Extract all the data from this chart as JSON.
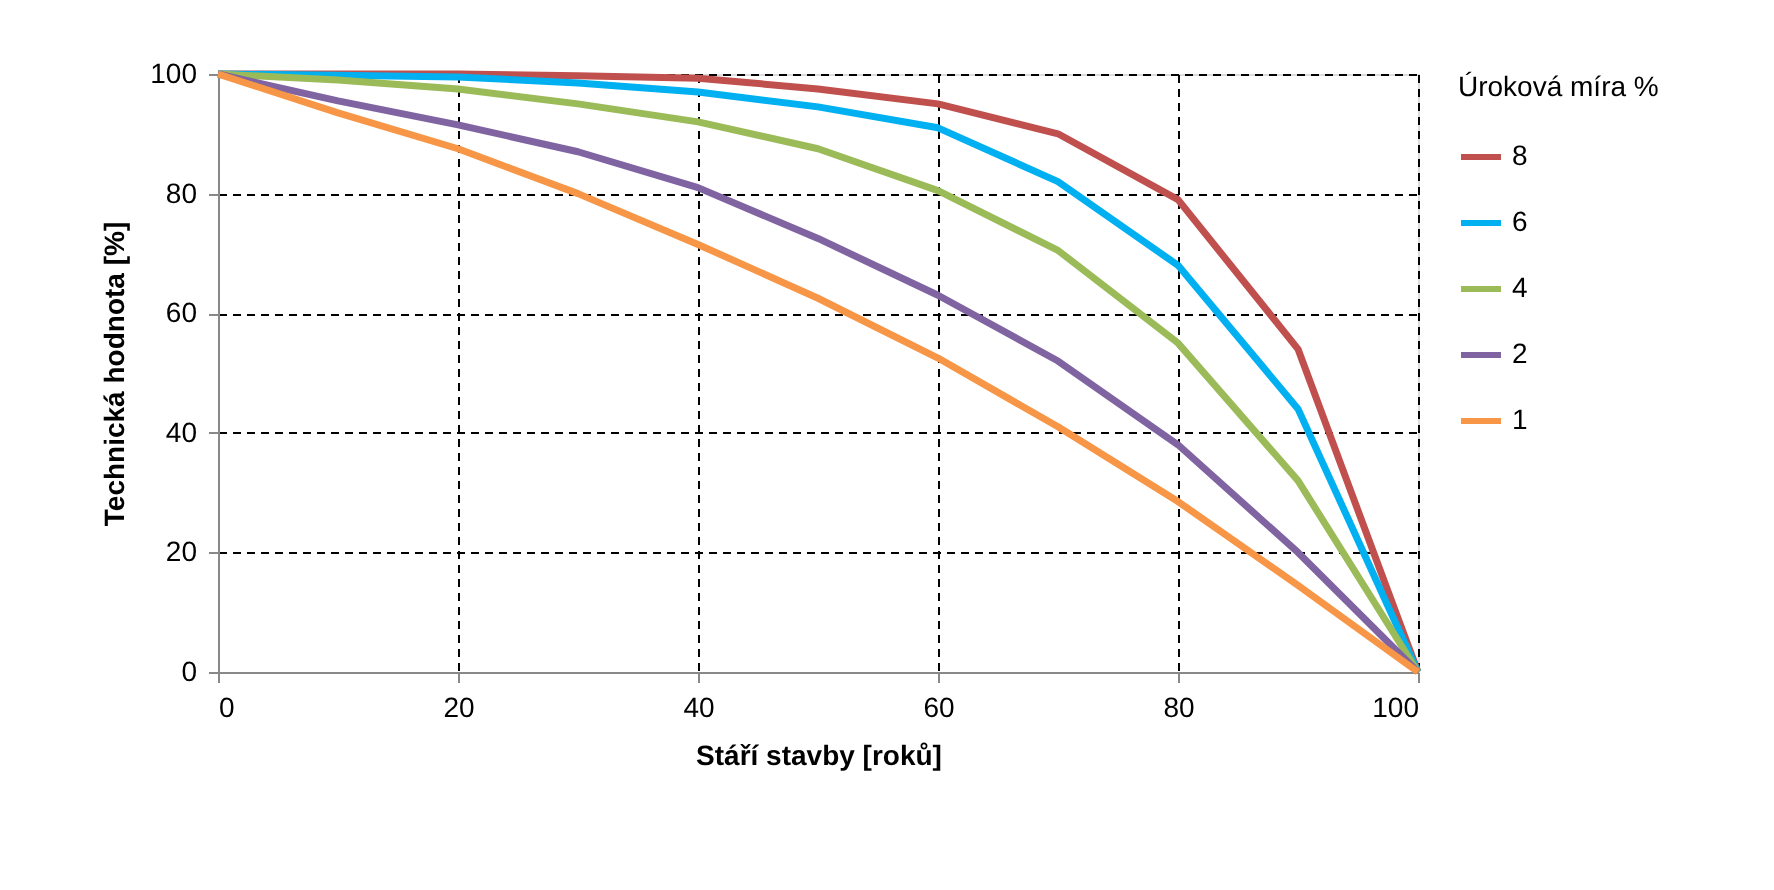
{
  "chart_data": {
    "type": "line",
    "xlabel": "Stáří stavby [roků]",
    "ylabel": "Technická hodnota [%]",
    "legend_title": "Úroková míra %",
    "x": [
      0,
      10,
      20,
      30,
      40,
      50,
      60,
      70,
      80,
      90,
      100
    ],
    "xlim": [
      0,
      100
    ],
    "xticks": [
      0,
      20,
      40,
      60,
      80,
      100
    ],
    "ylim": [
      0,
      100
    ],
    "yticks": [
      0,
      20,
      40,
      60,
      80,
      100
    ],
    "grid": true,
    "legend": "right",
    "marker": "none",
    "line_style": "solid",
    "series": [
      {
        "name": "8",
        "color": "#c0504d",
        "values": [
          100,
          100,
          100,
          99.7,
          99.3,
          97.5,
          95,
          90,
          79,
          54,
          0
        ]
      },
      {
        "name": "6",
        "color": "#00b0f0",
        "values": [
          100,
          99.8,
          99.5,
          98.5,
          97,
          94.5,
          91,
          82,
          68,
          44,
          0
        ]
      },
      {
        "name": "4",
        "color": "#9bbb59",
        "values": [
          100,
          99,
          97.5,
          95,
          92,
          87.5,
          80.5,
          70.5,
          55,
          32,
          0
        ]
      },
      {
        "name": "2",
        "color": "#8064a2",
        "values": [
          100,
          95.5,
          91.5,
          87,
          81,
          72.5,
          63,
          52,
          38,
          20,
          0
        ]
      },
      {
        "name": "1",
        "color": "#f79646",
        "values": [
          100,
          93.5,
          87.5,
          80,
          71.5,
          62.5,
          52.5,
          41,
          28.5,
          14.5,
          0
        ]
      }
    ]
  }
}
